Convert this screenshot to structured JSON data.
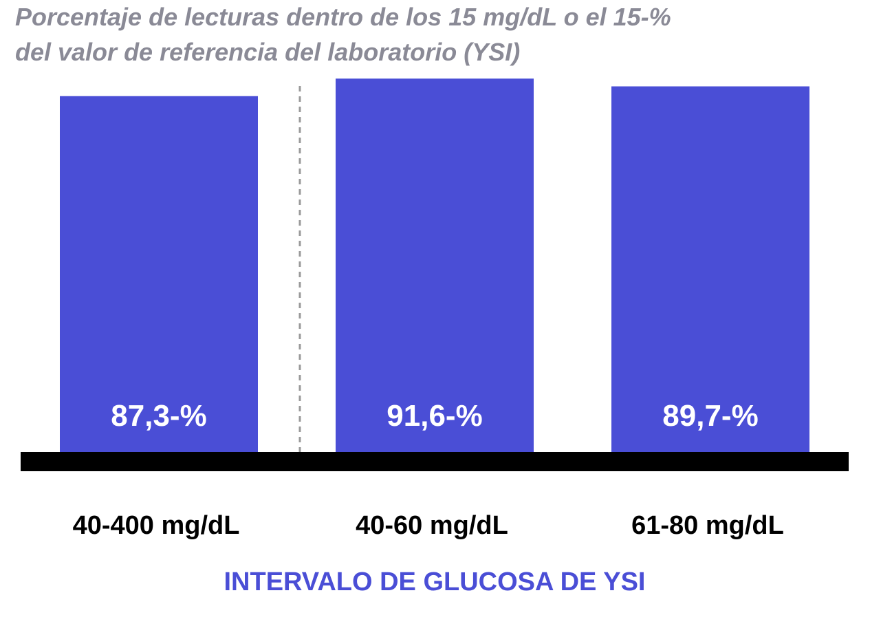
{
  "chart_data": {
    "type": "bar",
    "title": [
      "Porcentaje de lecturas dentro de los 15 mg/dL o el 15-%",
      "del valor de referencia del laboratorio (YSI)"
    ],
    "categories": [
      "40-400 mg/dL",
      "40-60 mg/dL",
      "61-80 mg/dL"
    ],
    "values": [
      87.3,
      91.6,
      89.7
    ],
    "value_labels": [
      "87,3-%",
      "91,6-%",
      "89,7-%"
    ],
    "color": "#4a4ed6",
    "x_label": "INTERVALO DE GLUCOSA DE YSI"
  }
}
